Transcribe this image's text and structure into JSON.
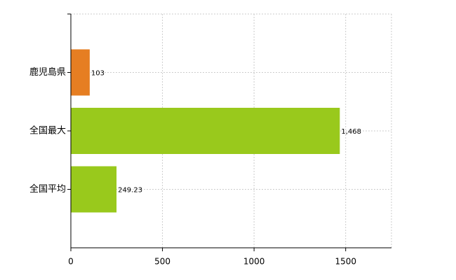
{
  "chart_data": {
    "type": "bar",
    "orientation": "horizontal",
    "categories": [
      "鹿児島県",
      "全国最大",
      "全国平均"
    ],
    "values": [
      103,
      1468,
      249.23
    ],
    "value_labels": [
      "103",
      "1,468",
      "249.23"
    ],
    "colors": [
      "#e67e22",
      "#99c91c",
      "#99c91c"
    ],
    "xlim": [
      0,
      1750
    ],
    "xticks": [
      0,
      500,
      1000,
      1500
    ],
    "grid": true
  }
}
